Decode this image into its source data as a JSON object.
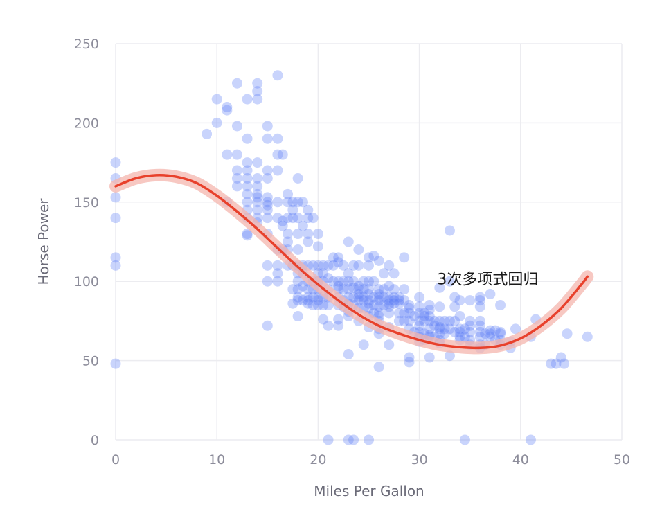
{
  "chart_data": {
    "type": "scatter",
    "xlabel": "Miles Per Gallon",
    "ylabel": "Horse Power",
    "xlim": [
      0,
      50
    ],
    "ylim": [
      0,
      250
    ],
    "x_ticks": [
      "0",
      "10",
      "20",
      "30",
      "40",
      "50"
    ],
    "y_ticks": [
      "0",
      "50",
      "100",
      "150",
      "200",
      "250"
    ],
    "grid": true,
    "colors": {
      "points": "#5b7cf5",
      "fit_line": "#e8412c",
      "band": "#f4b6ad"
    },
    "annotation": {
      "text": "3次多项式回归",
      "x": 41,
      "y": 102
    },
    "regression": {
      "degree": 3,
      "points": [
        [
          0,
          160
        ],
        [
          2,
          165
        ],
        [
          4,
          167
        ],
        [
          6,
          166
        ],
        [
          8,
          162
        ],
        [
          10,
          154
        ],
        [
          12,
          144
        ],
        [
          14,
          133
        ],
        [
          16,
          121
        ],
        [
          18,
          109
        ],
        [
          20,
          98
        ],
        [
          22,
          88
        ],
        [
          24,
          79
        ],
        [
          26,
          72
        ],
        [
          28,
          67
        ],
        [
          30,
          63
        ],
        [
          32,
          60
        ],
        [
          34,
          58.5
        ],
        [
          36,
          58
        ],
        [
          38,
          59.5
        ],
        [
          40,
          64
        ],
        [
          42,
          72
        ],
        [
          44,
          83
        ],
        [
          46,
          98
        ],
        [
          46.6,
          103
        ]
      ]
    },
    "points": [
      [
        0,
        175
      ],
      [
        0,
        165
      ],
      [
        0,
        153
      ],
      [
        0,
        140
      ],
      [
        0,
        115
      ],
      [
        0,
        110
      ],
      [
        0,
        48
      ],
      [
        9,
        193
      ],
      [
        10,
        215
      ],
      [
        10,
        200
      ],
      [
        11,
        210
      ],
      [
        11,
        208
      ],
      [
        11,
        180
      ],
      [
        11,
        150
      ],
      [
        12,
        225
      ],
      [
        12,
        198
      ],
      [
        12,
        180
      ],
      [
        12,
        170
      ],
      [
        12,
        165
      ],
      [
        12,
        160
      ],
      [
        13,
        215
      ],
      [
        13,
        190
      ],
      [
        13,
        175
      ],
      [
        13,
        170
      ],
      [
        13,
        165
      ],
      [
        13,
        160
      ],
      [
        13,
        155
      ],
      [
        13,
        150
      ],
      [
        13,
        145
      ],
      [
        13,
        140
      ],
      [
        13,
        130
      ],
      [
        13,
        129
      ],
      [
        14,
        225
      ],
      [
        14,
        220
      ],
      [
        14,
        215
      ],
      [
        14,
        175
      ],
      [
        14,
        165
      ],
      [
        14,
        160
      ],
      [
        14,
        155
      ],
      [
        14,
        153
      ],
      [
        14,
        150
      ],
      [
        14,
        145
      ],
      [
        14,
        140
      ],
      [
        14,
        137
      ],
      [
        15,
        198
      ],
      [
        15,
        190
      ],
      [
        15,
        170
      ],
      [
        15,
        165
      ],
      [
        15,
        153
      ],
      [
        15,
        150
      ],
      [
        15,
        148
      ],
      [
        15,
        145
      ],
      [
        15,
        140
      ],
      [
        15,
        130
      ],
      [
        15,
        110
      ],
      [
        15,
        100
      ],
      [
        15,
        72
      ],
      [
        16,
        230
      ],
      [
        16,
        190
      ],
      [
        16,
        180
      ],
      [
        16,
        170
      ],
      [
        16,
        150
      ],
      [
        16,
        140
      ],
      [
        16,
        120
      ],
      [
        16,
        110
      ],
      [
        16,
        105
      ],
      [
        16,
        100
      ],
      [
        16.5,
        180
      ],
      [
        16.5,
        138
      ],
      [
        16.5,
        135
      ],
      [
        16.5,
        120
      ],
      [
        17,
        155
      ],
      [
        17,
        150
      ],
      [
        17,
        140
      ],
      [
        17,
        130
      ],
      [
        17,
        125
      ],
      [
        17,
        120
      ],
      [
        17,
        110
      ],
      [
        17.5,
        150
      ],
      [
        17.5,
        145
      ],
      [
        17.5,
        140
      ],
      [
        17.5,
        110
      ],
      [
        17.5,
        95
      ],
      [
        17.5,
        86
      ],
      [
        18,
        165
      ],
      [
        18,
        150
      ],
      [
        18,
        140
      ],
      [
        18,
        130
      ],
      [
        18,
        120
      ],
      [
        18,
        110
      ],
      [
        18,
        105
      ],
      [
        18,
        100
      ],
      [
        18,
        95
      ],
      [
        18,
        90
      ],
      [
        18,
        88
      ],
      [
        18,
        78
      ],
      [
        18.5,
        150
      ],
      [
        18.5,
        135
      ],
      [
        18.5,
        110
      ],
      [
        18.5,
        105
      ],
      [
        18.5,
        97
      ],
      [
        18.5,
        88
      ],
      [
        19,
        145
      ],
      [
        19,
        140
      ],
      [
        19,
        130
      ],
      [
        19,
        125
      ],
      [
        19,
        110
      ],
      [
        19,
        100
      ],
      [
        19,
        95
      ],
      [
        19,
        90
      ],
      [
        19,
        88
      ],
      [
        19,
        86
      ],
      [
        19.5,
        140
      ],
      [
        19.5,
        110
      ],
      [
        19.5,
        100
      ],
      [
        19.5,
        95
      ],
      [
        19.5,
        90
      ],
      [
        19.5,
        85
      ],
      [
        20,
        130
      ],
      [
        20,
        122
      ],
      [
        20,
        110
      ],
      [
        20,
        105
      ],
      [
        20,
        100
      ],
      [
        20,
        95
      ],
      [
        20,
        90
      ],
      [
        20,
        88
      ],
      [
        20,
        85
      ],
      [
        20.5,
        110
      ],
      [
        20.5,
        105
      ],
      [
        20.5,
        100
      ],
      [
        20.5,
        90
      ],
      [
        20.5,
        85
      ],
      [
        20.5,
        76
      ],
      [
        21,
        110
      ],
      [
        21,
        102
      ],
      [
        21,
        95
      ],
      [
        21,
        90
      ],
      [
        21,
        85
      ],
      [
        21,
        72
      ],
      [
        21,
        0
      ],
      [
        21.5,
        115
      ],
      [
        21.5,
        110
      ],
      [
        21.5,
        100
      ],
      [
        22,
        115
      ],
      [
        22,
        112
      ],
      [
        22,
        100
      ],
      [
        22,
        97
      ],
      [
        22,
        95
      ],
      [
        22,
        90
      ],
      [
        22,
        85
      ],
      [
        22,
        76
      ],
      [
        22,
        72
      ],
      [
        22.5,
        110
      ],
      [
        22.5,
        100
      ],
      [
        22.5,
        95
      ],
      [
        22.5,
        88
      ],
      [
        22.5,
        84
      ],
      [
        23,
        125
      ],
      [
        23,
        105
      ],
      [
        23,
        100
      ],
      [
        23,
        95
      ],
      [
        23,
        90
      ],
      [
        23,
        86
      ],
      [
        23,
        81
      ],
      [
        23,
        78
      ],
      [
        23,
        54
      ],
      [
        23,
        0
      ],
      [
        23.5,
        110
      ],
      [
        23.5,
        100
      ],
      [
        23.5,
        96
      ],
      [
        23.5,
        90
      ],
      [
        23.5,
        85
      ],
      [
        23.5,
        0
      ],
      [
        24,
        120
      ],
      [
        24,
        110
      ],
      [
        24,
        97
      ],
      [
        24,
        95
      ],
      [
        24,
        92
      ],
      [
        24,
        90
      ],
      [
        24,
        88
      ],
      [
        24,
        83
      ],
      [
        24,
        75
      ],
      [
        24.5,
        100
      ],
      [
        24.5,
        95
      ],
      [
        24.5,
        90
      ],
      [
        24.5,
        88
      ],
      [
        24.5,
        83
      ],
      [
        24.5,
        60
      ],
      [
        25,
        115
      ],
      [
        25,
        110
      ],
      [
        25,
        100
      ],
      [
        25,
        95
      ],
      [
        25,
        92
      ],
      [
        25,
        88
      ],
      [
        25,
        86
      ],
      [
        25,
        83
      ],
      [
        25,
        78
      ],
      [
        25,
        71
      ],
      [
        25,
        0
      ],
      [
        25.5,
        116
      ],
      [
        25.5,
        100
      ],
      [
        25.5,
        90
      ],
      [
        25.5,
        85
      ],
      [
        25.5,
        80
      ],
      [
        26,
        113
      ],
      [
        26,
        95
      ],
      [
        26,
        92
      ],
      [
        26,
        90
      ],
      [
        26,
        88
      ],
      [
        26,
        84
      ],
      [
        26,
        80
      ],
      [
        26,
        78
      ],
      [
        26,
        75
      ],
      [
        26,
        70
      ],
      [
        26,
        67
      ],
      [
        26,
        46
      ],
      [
        26.5,
        105
      ],
      [
        26.5,
        95
      ],
      [
        26.5,
        90
      ],
      [
        26.5,
        85
      ],
      [
        27,
        110
      ],
      [
        27,
        97
      ],
      [
        27,
        90
      ],
      [
        27,
        88
      ],
      [
        27,
        86
      ],
      [
        27,
        84
      ],
      [
        27,
        80
      ],
      [
        27,
        71
      ],
      [
        27,
        60
      ],
      [
        27.5,
        105
      ],
      [
        27.5,
        95
      ],
      [
        27.5,
        90
      ],
      [
        27.5,
        88
      ],
      [
        27.5,
        86
      ],
      [
        28,
        90
      ],
      [
        28,
        88
      ],
      [
        28,
        86
      ],
      [
        28,
        80
      ],
      [
        28,
        75
      ],
      [
        28.5,
        115
      ],
      [
        28.5,
        95
      ],
      [
        28.5,
        88
      ],
      [
        28.5,
        80
      ],
      [
        28.5,
        75
      ],
      [
        29,
        85
      ],
      [
        29,
        83
      ],
      [
        29,
        80
      ],
      [
        29,
        75
      ],
      [
        29,
        70
      ],
      [
        29,
        52
      ],
      [
        29,
        49
      ],
      [
        29.5,
        78
      ],
      [
        29.5,
        68
      ],
      [
        30,
        90
      ],
      [
        30,
        84
      ],
      [
        30,
        80
      ],
      [
        30,
        75
      ],
      [
        30,
        72
      ],
      [
        30,
        68
      ],
      [
        30,
        65
      ],
      [
        30,
        62
      ],
      [
        30.5,
        80
      ],
      [
        30.5,
        78
      ],
      [
        30.5,
        75
      ],
      [
        30.5,
        67
      ],
      [
        30.5,
        63
      ],
      [
        31,
        85
      ],
      [
        31,
        82
      ],
      [
        31,
        78
      ],
      [
        31,
        75
      ],
      [
        31,
        70
      ],
      [
        31,
        66
      ],
      [
        31,
        65
      ],
      [
        31,
        52
      ],
      [
        31.5,
        75
      ],
      [
        31.5,
        72
      ],
      [
        31.5,
        65
      ],
      [
        32,
        96
      ],
      [
        32,
        84
      ],
      [
        32,
        75
      ],
      [
        32,
        71
      ],
      [
        32,
        70
      ],
      [
        32,
        67
      ],
      [
        32,
        63
      ],
      [
        32,
        61
      ],
      [
        32.5,
        75
      ],
      [
        32.5,
        70
      ],
      [
        32.5,
        67
      ],
      [
        33,
        132
      ],
      [
        33,
        100
      ],
      [
        33,
        75
      ],
      [
        33,
        70
      ],
      [
        33,
        53
      ],
      [
        33.5,
        90
      ],
      [
        33.5,
        84
      ],
      [
        33.5,
        75
      ],
      [
        33.5,
        68
      ],
      [
        34,
        88
      ],
      [
        34,
        78
      ],
      [
        34,
        70
      ],
      [
        34,
        68
      ],
      [
        34,
        65
      ],
      [
        34,
        63
      ],
      [
        34.5,
        70
      ],
      [
        34.5,
        65
      ],
      [
        34.5,
        0
      ],
      [
        35,
        88
      ],
      [
        35,
        75
      ],
      [
        35,
        72
      ],
      [
        35,
        68
      ],
      [
        35,
        63
      ],
      [
        35,
        60
      ],
      [
        36,
        90
      ],
      [
        36,
        88
      ],
      [
        36,
        84
      ],
      [
        36,
        75
      ],
      [
        36,
        72
      ],
      [
        36,
        68
      ],
      [
        36,
        65
      ],
      [
        36,
        60
      ],
      [
        36,
        58
      ],
      [
        36.5,
        67
      ],
      [
        36.5,
        60
      ],
      [
        37,
        92
      ],
      [
        37,
        69
      ],
      [
        37,
        67
      ],
      [
        37,
        65
      ],
      [
        37.5,
        69
      ],
      [
        37.5,
        63
      ],
      [
        38,
        85
      ],
      [
        38,
        68
      ],
      [
        38,
        67
      ],
      [
        38,
        63
      ],
      [
        38,
        60
      ],
      [
        39,
        62
      ],
      [
        39,
        58
      ],
      [
        39.5,
        70
      ],
      [
        41,
        65
      ],
      [
        41,
        0
      ],
      [
        41.5,
        76
      ],
      [
        43,
        48
      ],
      [
        43.5,
        48
      ],
      [
        44,
        52
      ],
      [
        44.3,
        48
      ],
      [
        44.6,
        67
      ],
      [
        46.6,
        65
      ]
    ]
  }
}
